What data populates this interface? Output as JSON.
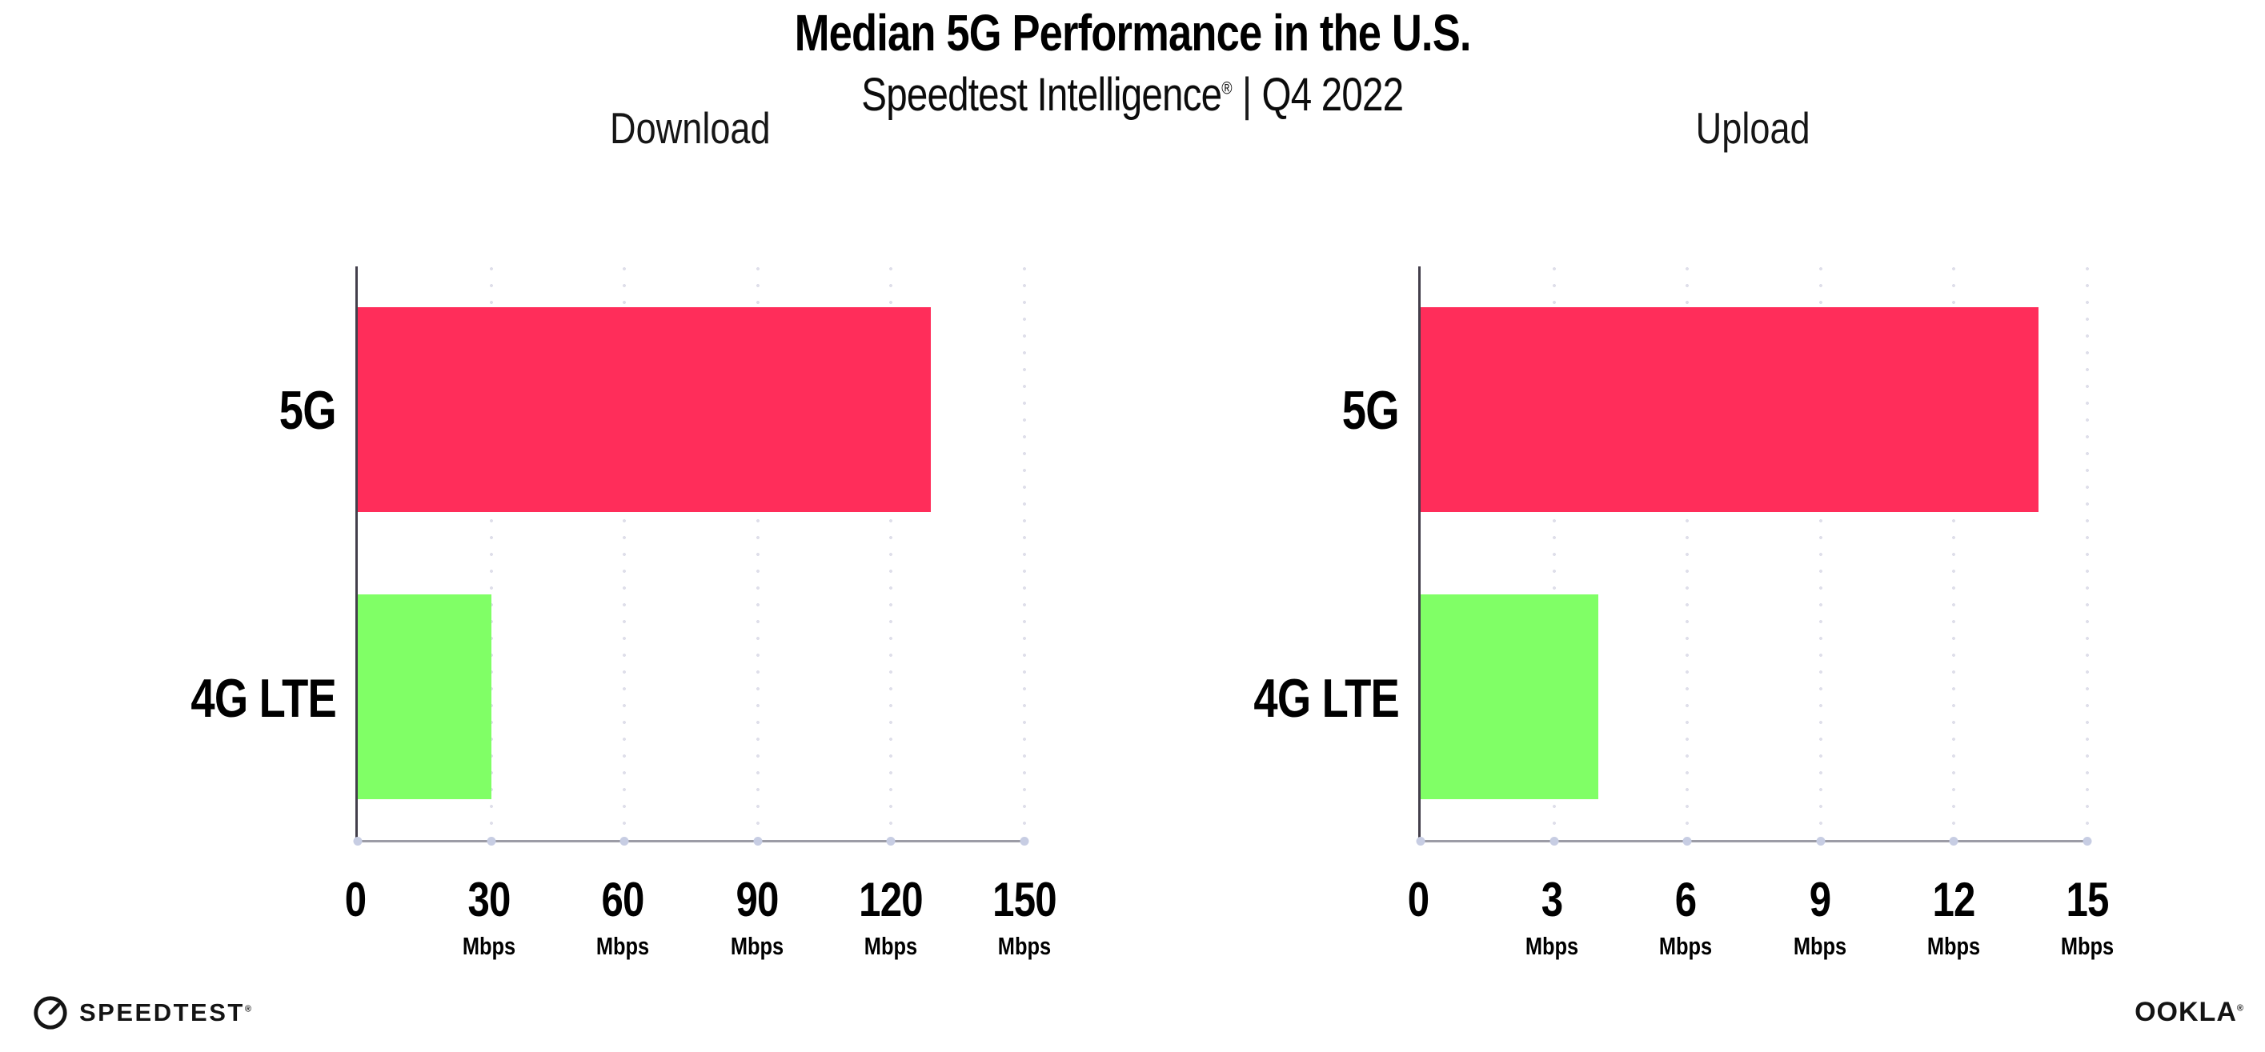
{
  "header": {
    "title": "Median 5G Performance in the U.S.",
    "subtitle_brand": "Speedtest Intelligence",
    "subtitle_reg": "®",
    "subtitle_separator": "|",
    "subtitle_period": "Q4 2022"
  },
  "chart_data": [
    {
      "type": "bar",
      "orientation": "horizontal",
      "title": "Download",
      "categories": [
        "5G",
        "4G LTE"
      ],
      "values": [
        129,
        30
      ],
      "unit": "Mbps",
      "xlim": [
        0,
        150
      ],
      "xticks": [
        0,
        30,
        60,
        90,
        120,
        150
      ],
      "tick_unit_label": "Mbps",
      "bar_colors": [
        "#ff2d5a",
        "#80ff66"
      ],
      "grid": "dotted-vertical",
      "legend": "none"
    },
    {
      "type": "bar",
      "orientation": "horizontal",
      "title": "Upload",
      "categories": [
        "5G",
        "4G LTE"
      ],
      "values": [
        13.9,
        4.0
      ],
      "unit": "Mbps",
      "xlim": [
        0,
        15
      ],
      "xticks": [
        0,
        3,
        6,
        9,
        12,
        15
      ],
      "tick_unit_label": "Mbps",
      "bar_colors": [
        "#ff2d5a",
        "#80ff66"
      ],
      "grid": "dotted-vertical",
      "legend": "none"
    }
  ],
  "colors": {
    "bar_5g": "#ff2d5a",
    "bar_4g_lte": "#80ff66",
    "left_axis_line": "#433f4b",
    "bottom_axis_line": "#9c9ca6",
    "gridline_dots": "#dfdfea",
    "axis_tick_dots": "#c7cde3",
    "text": "#000000"
  },
  "footer": {
    "left_logo_text": "SPEEDTEST",
    "left_logo_mark": "®",
    "right_logo_text": "OOKLA",
    "right_logo_mark": "®"
  }
}
